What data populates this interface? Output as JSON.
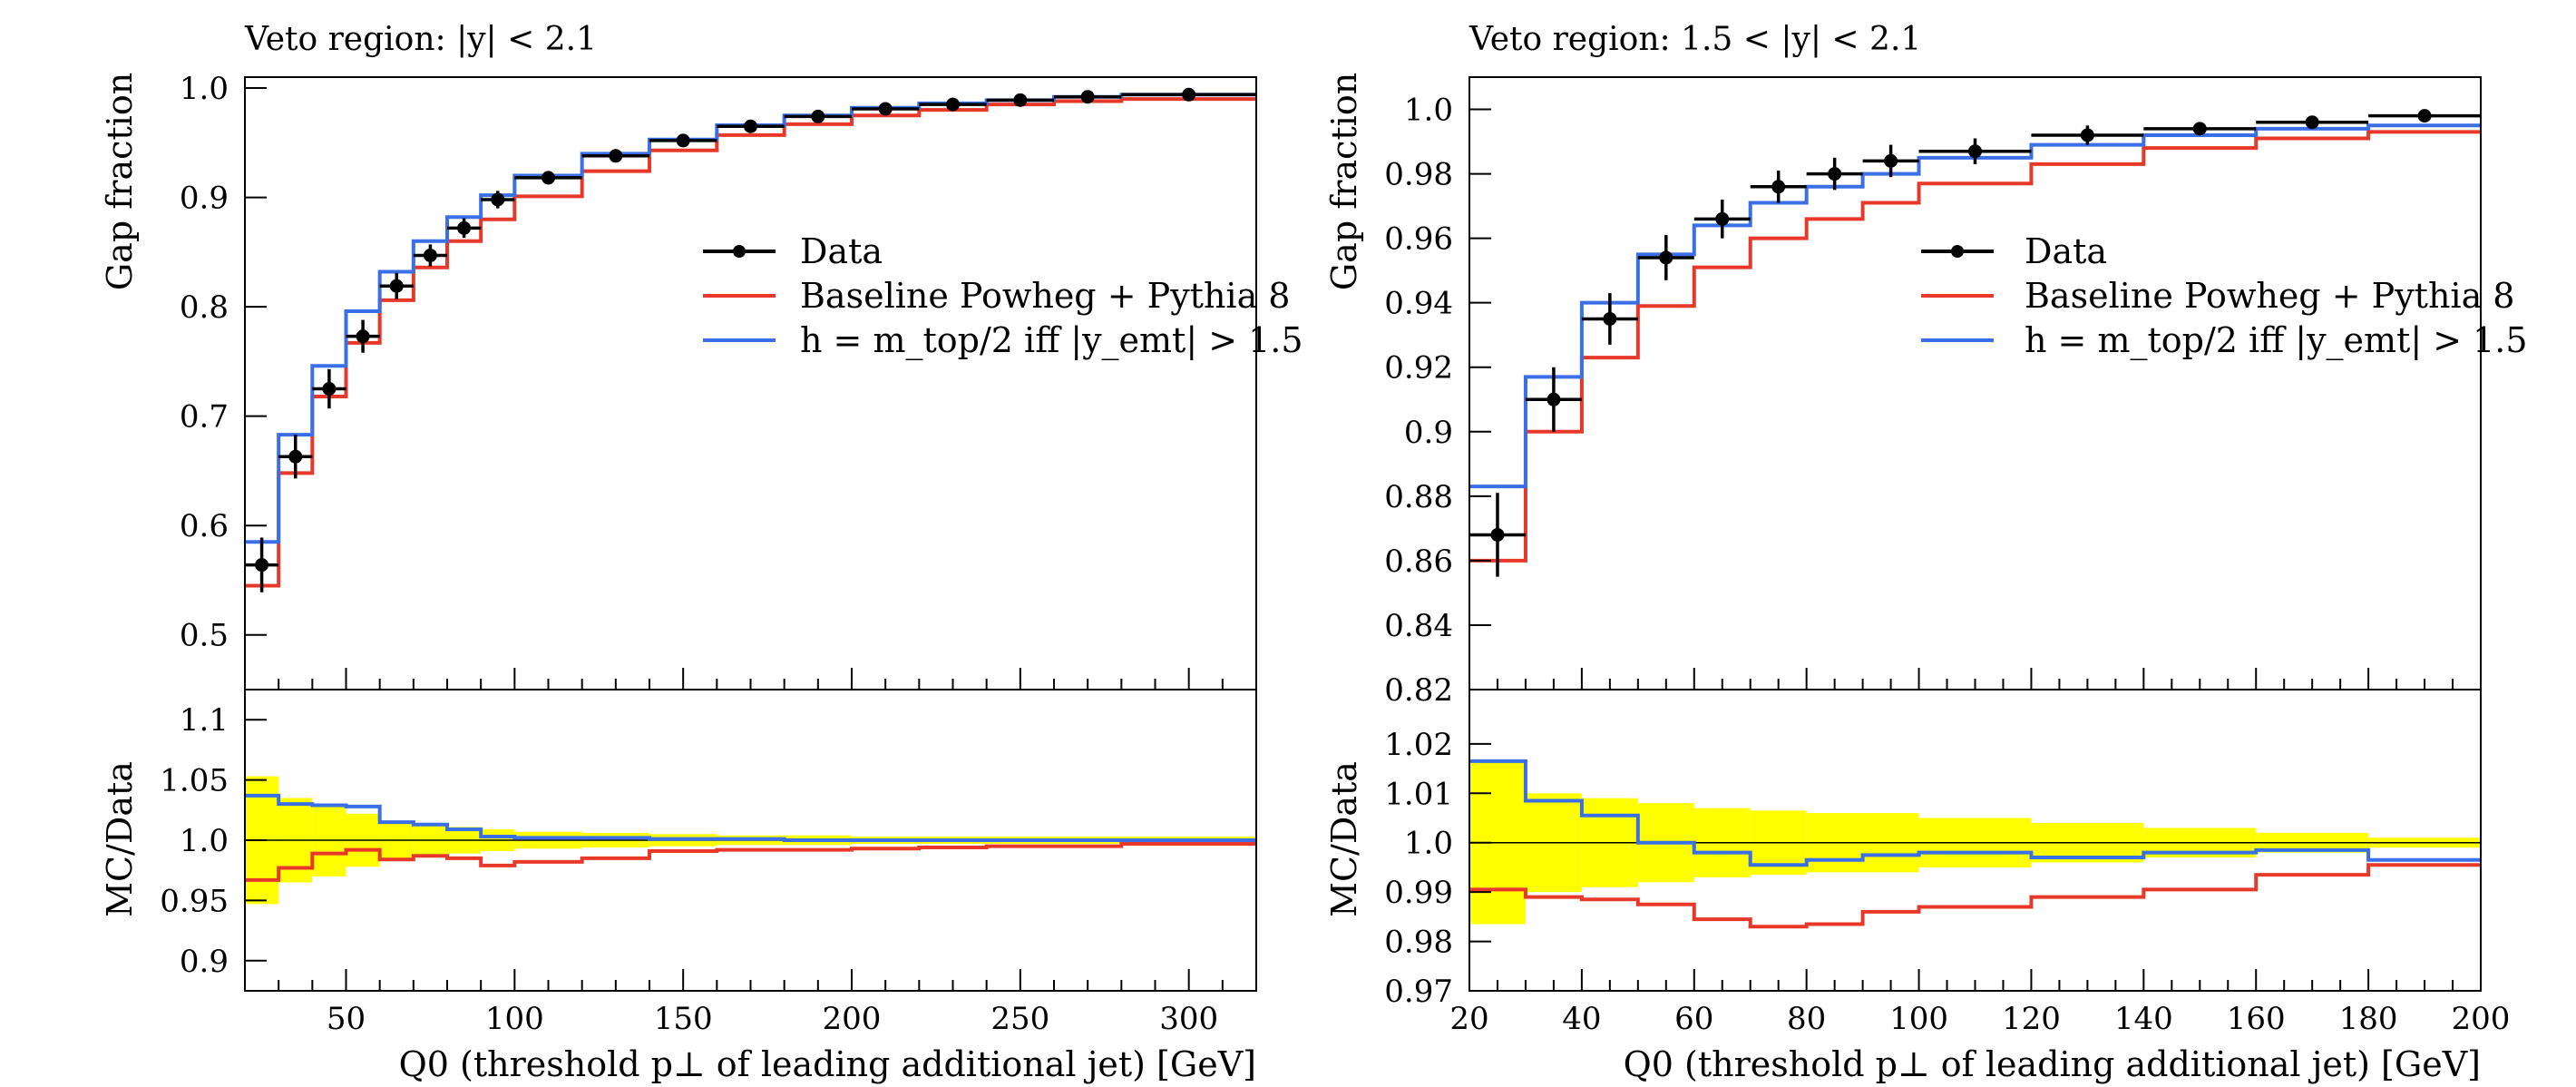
{
  "colors": {
    "data": "#000000",
    "baseline": "#e8382a",
    "variant": "#3a6fe8",
    "band": "#ffff00"
  },
  "legend": {
    "data": "Data",
    "baseline": "Baseline Powheg + Pythia 8",
    "variant": "h = m_top/2 iff |y_emt| > 1.5"
  },
  "chart_data": [
    {
      "type": "line",
      "title": "Veto region: |y| < 2.1",
      "xlabel": "Q0 (threshold p⊥ of leading additional jet) [GeV]",
      "ylabel_main": "Gap fraction",
      "ylabel_ratio": "MC/Data",
      "xlim": [
        20,
        320
      ],
      "ylim_main": [
        0.45,
        1.01
      ],
      "ylim_ratio": [
        0.875,
        1.125
      ],
      "x_ticks": [
        50,
        100,
        150,
        200,
        250,
        300
      ],
      "y_ticks_main": [
        "0.5",
        "0.6",
        "0.7",
        "0.8",
        "0.9",
        "1.0"
      ],
      "y_ticks_ratio": [
        "0.9",
        "0.95",
        "1.0",
        "1.05",
        "1.1"
      ],
      "bin_edges": [
        20,
        30,
        40,
        50,
        60,
        70,
        80,
        90,
        100,
        120,
        140,
        160,
        180,
        200,
        220,
        240,
        260,
        280,
        320
      ],
      "series": [
        {
          "name": "Data",
          "x": [
            25,
            35,
            45,
            55,
            65,
            75,
            85,
            95,
            110,
            130,
            150,
            170,
            190,
            210,
            230,
            250,
            270,
            300
          ],
          "values": [
            0.564,
            0.663,
            0.725,
            0.773,
            0.819,
            0.847,
            0.872,
            0.898,
            0.918,
            0.938,
            0.952,
            0.965,
            0.974,
            0.981,
            0.985,
            0.989,
            0.992,
            0.994
          ],
          "errors": [
            0.025,
            0.02,
            0.018,
            0.015,
            0.012,
            0.01,
            0.009,
            0.008,
            0.006,
            0.005,
            0.004,
            0.003,
            0.003,
            0.002,
            0.002,
            0.002,
            0.002,
            0.002
          ]
        },
        {
          "name": "Baseline Powheg + Pythia 8",
          "values": [
            0.545,
            0.648,
            0.718,
            0.767,
            0.806,
            0.836,
            0.86,
            0.88,
            0.901,
            0.924,
            0.943,
            0.957,
            0.967,
            0.975,
            0.98,
            0.985,
            0.988,
            0.99
          ],
          "ratio": [
            0.967,
            0.977,
            0.989,
            0.992,
            0.984,
            0.987,
            0.985,
            0.979,
            0.982,
            0.985,
            0.991,
            0.992,
            0.992,
            0.993,
            0.994,
            0.995,
            0.995,
            0.997
          ]
        },
        {
          "name": "h = m_top/2 iff |y_emt| > 1.5",
          "values": [
            0.585,
            0.683,
            0.746,
            0.796,
            0.832,
            0.86,
            0.882,
            0.902,
            0.92,
            0.94,
            0.953,
            0.966,
            0.975,
            0.982,
            0.986,
            0.989,
            0.992,
            0.994
          ],
          "ratio": [
            1.037,
            1.03,
            1.029,
            1.028,
            1.015,
            1.013,
            1.009,
            1.003,
            1.002,
            1.002,
            1.001,
            1.001,
            1.0,
            1.0,
            1.0,
            1.0,
            1.0,
            1.0
          ]
        }
      ],
      "band": [
        0.053,
        0.035,
        0.03,
        0.022,
        0.016,
        0.013,
        0.011,
        0.009,
        0.007,
        0.006,
        0.005,
        0.004,
        0.004,
        0.003,
        0.003,
        0.003,
        0.003,
        0.003
      ]
    },
    {
      "type": "line",
      "title": "Veto region: 1.5 < |y| < 2.1",
      "xlabel": "Q0 (threshold p⊥ of leading additional jet) [GeV]",
      "ylabel_main": "Gap fraction",
      "ylabel_ratio": "MC/Data",
      "xlim": [
        20,
        200
      ],
      "ylim_main": [
        0.82,
        1.01
      ],
      "ylim_ratio": [
        0.97,
        1.031
      ],
      "x_ticks": [
        20,
        40,
        60,
        80,
        100,
        120,
        140,
        160,
        180,
        200
      ],
      "y_ticks_main": [
        "0.82",
        "0.84",
        "0.86",
        "0.88",
        "0.9",
        "0.92",
        "0.94",
        "0.96",
        "0.98",
        "1.0"
      ],
      "y_ticks_ratio": [
        "0.97",
        "0.98",
        "0.99",
        "1.0",
        "1.01",
        "1.02"
      ],
      "bin_edges": [
        20,
        30,
        40,
        50,
        60,
        70,
        80,
        90,
        100,
        120,
        140,
        160,
        180,
        200
      ],
      "series": [
        {
          "name": "Data",
          "x": [
            25,
            35,
            45,
            55,
            65,
            75,
            85,
            95,
            110,
            130,
            150,
            170,
            190
          ],
          "values": [
            0.868,
            0.91,
            0.935,
            0.954,
            0.966,
            0.976,
            0.98,
            0.984,
            0.987,
            0.992,
            0.994,
            0.996,
            0.998
          ],
          "errors": [
            0.013,
            0.01,
            0.008,
            0.007,
            0.006,
            0.005,
            0.005,
            0.005,
            0.004,
            0.003,
            0.002,
            0.002,
            0.001
          ]
        },
        {
          "name": "Baseline Powheg + Pythia 8",
          "values": [
            0.86,
            0.9,
            0.923,
            0.939,
            0.951,
            0.96,
            0.966,
            0.971,
            0.977,
            0.983,
            0.988,
            0.991,
            0.993
          ],
          "ratio": [
            0.9905,
            0.989,
            0.9885,
            0.9875,
            0.9845,
            0.983,
            0.9835,
            0.986,
            0.987,
            0.989,
            0.9905,
            0.9935,
            0.9955
          ]
        },
        {
          "name": "h = m_top/2 iff |y_emt| > 1.5",
          "values": [
            0.883,
            0.917,
            0.94,
            0.955,
            0.964,
            0.971,
            0.976,
            0.98,
            0.985,
            0.989,
            0.992,
            0.994,
            0.995
          ],
          "ratio": [
            1.0165,
            1.0085,
            1.0055,
            1.0,
            0.998,
            0.9955,
            0.9965,
            0.9975,
            0.998,
            0.997,
            0.998,
            0.9985,
            0.9965
          ]
        }
      ],
      "band": [
        0.0165,
        0.01,
        0.009,
        0.008,
        0.007,
        0.0065,
        0.006,
        0.006,
        0.005,
        0.004,
        0.003,
        0.002,
        0.001
      ]
    }
  ]
}
